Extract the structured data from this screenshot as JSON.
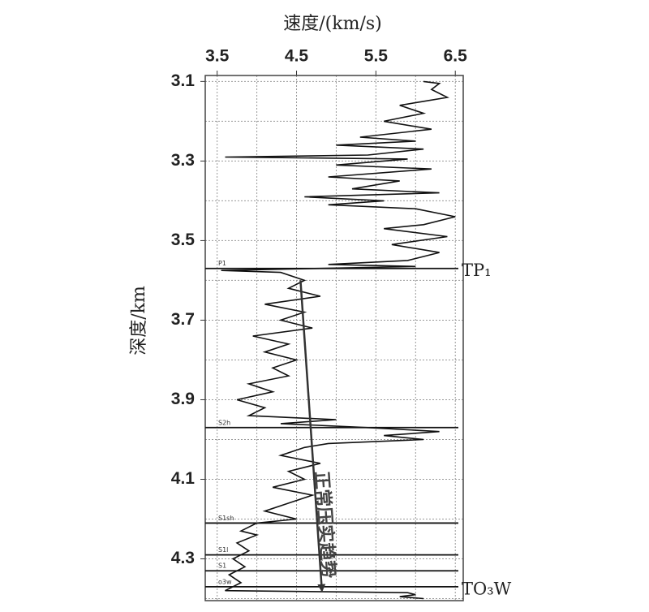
{
  "chart_data": {
    "type": "line",
    "x_label": "速度/(km/s)",
    "y_label": "深度/km",
    "xlim": [
      3.35,
      6.6
    ],
    "ylim": [
      3.085,
      4.405
    ],
    "xticks": [
      3.5,
      4.5,
      5.5,
      6.5
    ],
    "yticks": [
      3.1,
      3.3,
      3.5,
      3.7,
      3.9,
      4.1,
      4.3
    ],
    "minor_xticks": [
      4.0,
      5.0,
      6.0
    ],
    "minor_yticks": [
      3.2,
      3.4,
      3.6,
      3.8,
      4.0,
      4.2,
      4.4
    ],
    "y_inverted": true,
    "grid": true,
    "color": "#111111",
    "depth": [
      3.1,
      3.105,
      3.12,
      3.14,
      3.16,
      3.18,
      3.2,
      3.22,
      3.24,
      3.25,
      3.26,
      3.27,
      3.285,
      3.29,
      3.295,
      3.31,
      3.32,
      3.34,
      3.35,
      3.37,
      3.38,
      3.39,
      3.4,
      3.41,
      3.42,
      3.44,
      3.46,
      3.47,
      3.49,
      3.51,
      3.53,
      3.55,
      3.56,
      3.565,
      3.57,
      3.575,
      3.58,
      3.6,
      3.62,
      3.64,
      3.66,
      3.68,
      3.7,
      3.72,
      3.74,
      3.76,
      3.78,
      3.8,
      3.82,
      3.84,
      3.86,
      3.88,
      3.9,
      3.92,
      3.94,
      3.95,
      3.96,
      3.97,
      3.98,
      3.99,
      4.0,
      4.01,
      4.02,
      4.04,
      4.06,
      4.08,
      4.1,
      4.12,
      4.14,
      4.16,
      4.18,
      4.2,
      4.21,
      4.23,
      4.24,
      4.26,
      4.28,
      4.3,
      4.32,
      4.34,
      4.36,
      4.38,
      4.385,
      4.39,
      4.395,
      4.4
    ],
    "velocity": [
      6.1,
      6.3,
      6.2,
      6.4,
      5.8,
      6.1,
      5.6,
      6.2,
      5.3,
      6.0,
      5.0,
      6.1,
      5.4,
      3.6,
      5.9,
      5.0,
      6.2,
      4.9,
      5.8,
      5.2,
      6.3,
      4.6,
      5.6,
      4.9,
      6.0,
      6.5,
      6.1,
      5.6,
      6.4,
      5.7,
      6.3,
      5.9,
      4.9,
      6.0,
      4.8,
      3.55,
      4.3,
      4.6,
      4.4,
      4.8,
      4.1,
      4.6,
      4.3,
      4.7,
      3.95,
      4.4,
      4.1,
      4.5,
      4.2,
      4.4,
      3.9,
      4.2,
      3.75,
      4.1,
      3.9,
      5.0,
      4.3,
      5.4,
      6.3,
      5.6,
      6.1,
      4.9,
      4.6,
      4.3,
      4.8,
      4.4,
      4.6,
      4.2,
      4.7,
      4.4,
      4.1,
      4.5,
      4.0,
      3.8,
      4.0,
      3.75,
      3.9,
      3.7,
      3.85,
      3.65,
      3.8,
      3.6,
      5.9,
      6.0,
      5.8,
      6.1
    ],
    "formations": [
      {
        "depth": 3.57,
        "label": "P1",
        "marker": "TP₁"
      },
      {
        "depth": 3.97,
        "label": "S2h"
      },
      {
        "depth": 4.21,
        "label": "S1sh"
      },
      {
        "depth": 4.29,
        "label": "S1l"
      },
      {
        "depth": 4.33,
        "label": "S1"
      },
      {
        "depth": 4.37,
        "label": "o3w",
        "marker": "TO₃W"
      }
    ],
    "trend": {
      "label": "正常压实趋势",
      "from": [
        4.55,
        3.6
      ],
      "to": [
        4.82,
        4.38
      ]
    }
  }
}
